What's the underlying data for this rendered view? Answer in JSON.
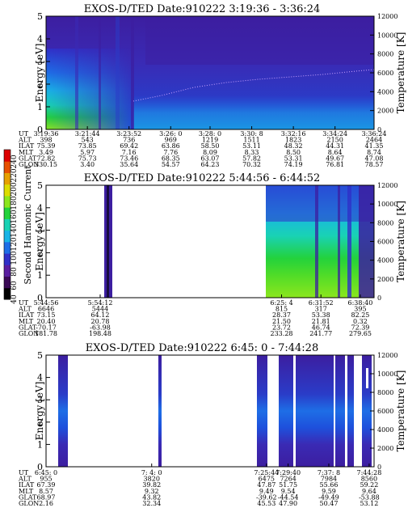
{
  "colorbar": {
    "label": "Second Harmonic Current",
    "ticks": [
      40,
      60,
      80,
      100,
      120,
      140,
      160,
      180,
      200,
      220,
      240
    ],
    "colors": [
      "#000000",
      "#3a0a55",
      "#5a1ea0",
      "#3030c8",
      "#1e6ee6",
      "#19b4e6",
      "#19d2b4",
      "#23d23c",
      "#8ce61e",
      "#dcdc00",
      "#e6a000",
      "#e65000",
      "#dc0000"
    ]
  },
  "chart_data": [
    {
      "type": "heatmap",
      "title": "EXOS-D/TED   Date:910222  3:19:36 - 3:36:24",
      "ylabel": "Energy [eV]",
      "y2label": "Temperature [K]",
      "ylim": [
        0,
        5
      ],
      "y2lim": [
        0,
        12000
      ],
      "yticks": [
        "0",
        "1",
        "2",
        "3",
        "4",
        "5"
      ],
      "y2ticks": [
        "0",
        "2000",
        "4000",
        "6000",
        "8000",
        "10000",
        "12000"
      ],
      "orbit_rows": [
        "UT",
        "ALT",
        "ILAT",
        "MLT",
        "GLAT",
        "GLON"
      ],
      "orbit_cols": [
        [
          "3:19:36",
          "398",
          "75.39",
          "3.49",
          "72.82",
          "330.15"
        ],
        [
          "3:21:44",
          "543",
          "73.85",
          "5.97",
          "75.73",
          "3.40"
        ],
        [
          "3:23:52",
          "736",
          "69.42",
          "7.16",
          "73.46",
          "35.64"
        ],
        [
          "3:26: 0",
          "969",
          "63.86",
          "7.76",
          "68.35",
          "54.57"
        ],
        [
          "3:28: 0",
          "1219",
          "58.50",
          "8.09",
          "63.07",
          "64.23"
        ],
        [
          "3:30: 8",
          "1511",
          "53.11",
          "8.33",
          "57.82",
          "70.32"
        ],
        [
          "3:32:16",
          "1823",
          "48.32",
          "8.50",
          "53.31",
          "74.19"
        ],
        [
          "3:34:24",
          "2150",
          "44.31",
          "8.64",
          "49.67",
          "76.81"
        ],
        [
          "3:36:24",
          "2464",
          "41.35",
          "8.74",
          "47.08",
          "78.57"
        ]
      ],
      "col_frac": [
        0,
        0.126,
        0.253,
        0.38,
        0.5,
        0.627,
        0.754,
        0.881,
        1.0
      ]
    },
    {
      "type": "heatmap",
      "title": "EXOS-D/TED   Date:910222  5:44:56 - 6:44:52",
      "ylabel": "Energy [eV]",
      "y2label": "Temperature [K]",
      "ylim": [
        0,
        5
      ],
      "y2lim": [
        0,
        12000
      ],
      "yticks": [
        "0",
        "1",
        "2",
        "3",
        "4",
        "5"
      ],
      "y2ticks": [
        "0",
        "2000",
        "4000",
        "6000",
        "8000",
        "10000",
        "12000"
      ],
      "orbit_rows": [
        "UT",
        "ALT",
        "ILAT",
        "MLT",
        "GLAT",
        "GLON"
      ],
      "orbit_cols": [
        [
          "5:44:56",
          "6646",
          "73.15",
          "20.40",
          "-70.17",
          "181.78"
        ],
        [
          "5:54:12",
          "5444",
          "64.12",
          "20.78",
          "-63.98",
          "198.48"
        ],
        [
          "6:25: 4",
          "815",
          "28.37",
          "21.50",
          "23.72",
          "233.28"
        ],
        [
          "6:31:52",
          "317",
          "53.38",
          "21.81",
          "46.74",
          "241.77"
        ],
        [
          "6:38:40",
          "395",
          "82.25",
          "0.32",
          "72.39",
          "279.65"
        ]
      ],
      "col_frac": [
        0,
        0.165,
        0.718,
        0.838,
        0.958
      ]
    },
    {
      "type": "heatmap",
      "title": "EXOS-D/TED   Date:910222  6:45: 0 - 7:44:28",
      "ylabel": "Energy [eV]",
      "y2label": "Temperature [K]",
      "ylim": [
        0,
        5
      ],
      "y2lim": [
        0,
        12000
      ],
      "yticks": [
        "0",
        "1",
        "2",
        "3",
        "4",
        "5"
      ],
      "y2ticks": [
        "0",
        "2000",
        "4000",
        "6000",
        "8000",
        "10000",
        "12000"
      ],
      "orbit_rows": [
        "UT",
        "ALT",
        "ILAT",
        "MLT",
        "GLAT",
        "GLON"
      ],
      "orbit_cols": [
        [
          "6:45: 0",
          "955",
          "67.39",
          "8.57",
          "68.97",
          "2.16"
        ],
        [
          "7: 4: 0",
          "3820",
          "39.82",
          "9.32",
          "43.82",
          "32.34"
        ],
        [
          "7:25:44",
          "6475",
          "47.87",
          "9.49",
          "-39.62",
          "45.53"
        ],
        [
          "7:29:40",
          "7264",
          "51.75",
          "9.54",
          "-44.54",
          "47.90"
        ],
        [
          "7:37: 8",
          "7984",
          "55.66",
          "9.59",
          "-49.49",
          "50.47"
        ],
        [
          "7:44:28",
          "8560",
          "59.22",
          "9.64",
          "-53.88",
          "53.12"
        ]
      ],
      "col_frac": [
        0,
        0.322,
        0.672,
        0.738,
        0.862,
        0.985
      ]
    }
  ]
}
